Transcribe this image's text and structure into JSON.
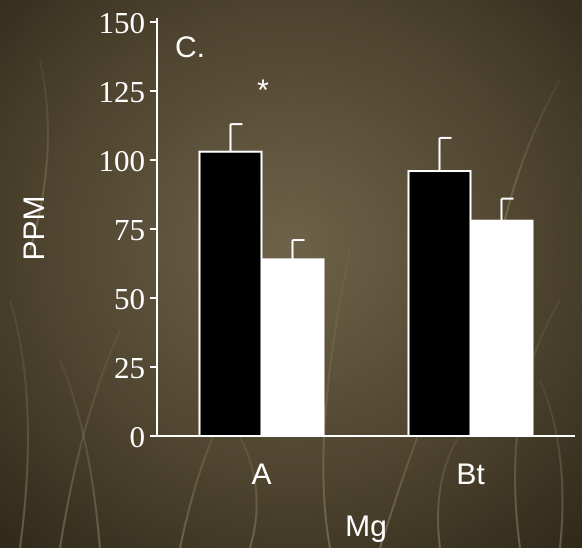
{
  "chart_data": {
    "type": "bar",
    "annotations": [
      "C.",
      "*"
    ],
    "y_label": "PPM",
    "x_label": "Mg",
    "categories": [
      "A",
      "Bt"
    ],
    "series": [
      {
        "color": "#000000",
        "values": [
          103,
          96
        ],
        "errors": [
          10,
          12
        ]
      },
      {
        "color": "#ffffff",
        "values": [
          64,
          78
        ],
        "errors": [
          7,
          8
        ]
      }
    ],
    "ylim": [
      0,
      150
    ],
    "yticks": [
      0,
      25,
      50,
      75,
      100,
      125,
      150
    ],
    "grid": false
  }
}
